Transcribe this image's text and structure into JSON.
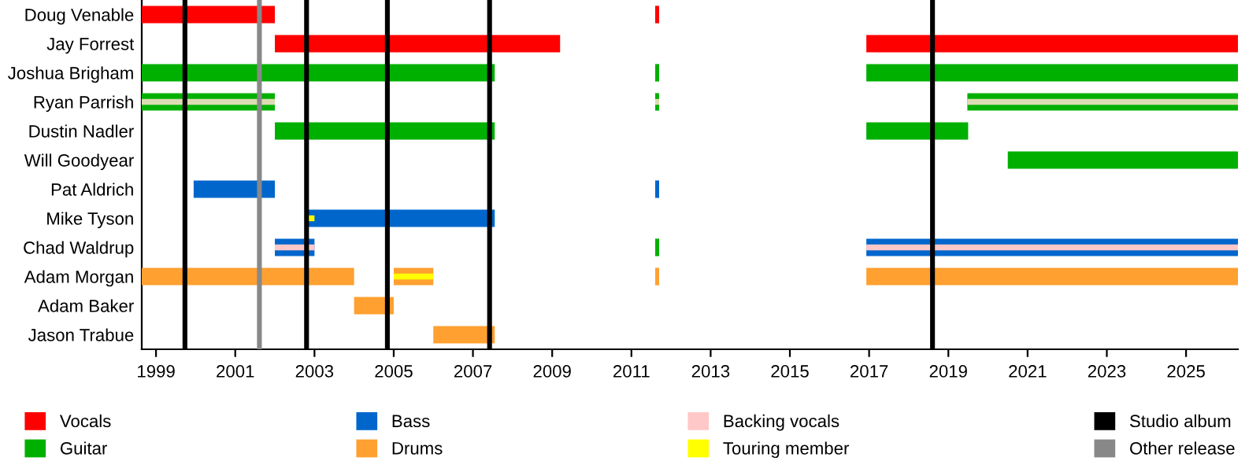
{
  "chart_data": {
    "type": "bar",
    "orientation": "horizontal",
    "categories": [
      "Doug Venable",
      "Jay Forrest",
      "Joshua Brigham",
      "Ryan Parrish",
      "Dustin Nadler",
      "Will Goodyear",
      "Pat Aldrich",
      "Mike Tyson",
      "Chad Waldrup",
      "Adam Morgan",
      "Adam Baker",
      "Jason Trabue"
    ],
    "series": [
      {
        "name": "Vocals",
        "color": "#ff0000",
        "base": [
          1998.64,
          2002.0,
          null,
          null,
          null,
          null,
          null,
          null,
          null,
          null,
          null,
          null
        ],
        "values": [
          3.36,
          7.2,
          null,
          null,
          null,
          null,
          null,
          null,
          null,
          null,
          null,
          null
        ]
      },
      {
        "color": "#ff0000",
        "base": [
          2011.6,
          2016.93,
          null,
          null,
          null,
          null,
          null,
          null,
          null,
          null,
          null,
          null
        ],
        "values": [
          0.1,
          9.38,
          null,
          null,
          null,
          null,
          null,
          null,
          null,
          null,
          null,
          null
        ]
      },
      {
        "name": "Guitar",
        "color": "#00b000",
        "base": [
          null,
          null,
          1998.64,
          1998.64,
          2002.0,
          null,
          null,
          null,
          null,
          null,
          null,
          null
        ],
        "values": [
          null,
          null,
          8.91,
          3.36,
          5.55,
          null,
          null,
          null,
          null,
          null,
          null,
          null
        ]
      },
      {
        "color": "#00b000",
        "base": [
          null,
          null,
          2011.6,
          2011.6,
          2016.93,
          2020.5,
          null,
          null,
          2011.6,
          null,
          null,
          null
        ],
        "values": [
          null,
          null,
          0.1,
          0.1,
          2.57,
          5.81,
          null,
          null,
          0.1,
          null,
          null,
          null
        ]
      },
      {
        "color": "#00b000",
        "base": [
          null,
          null,
          2016.93,
          2019.48,
          null,
          null,
          null,
          null,
          null,
          null,
          null,
          null
        ],
        "values": [
          null,
          null,
          9.38,
          6.83,
          null,
          null,
          null,
          null,
          null,
          null,
          null,
          null
        ]
      },
      {
        "name": "Bass",
        "color": "#0066cc",
        "base": [
          null,
          null,
          null,
          null,
          null,
          null,
          1999.95,
          2002.78,
          2002.0,
          null,
          null,
          null
        ],
        "values": [
          null,
          null,
          null,
          null,
          null,
          null,
          2.05,
          4.77,
          1.0,
          null,
          null,
          null
        ]
      },
      {
        "color": "#0066cc",
        "base": [
          null,
          null,
          null,
          null,
          null,
          null,
          2011.6,
          null,
          2016.93,
          null,
          null,
          null
        ],
        "values": [
          null,
          null,
          null,
          null,
          null,
          null,
          0.1,
          null,
          9.38,
          null,
          null,
          null
        ]
      },
      {
        "name": "Drums",
        "color": "#ffa030",
        "base": [
          null,
          null,
          null,
          null,
          null,
          null,
          null,
          null,
          null,
          1998.64,
          2004.0,
          2006.0
        ],
        "values": [
          null,
          null,
          null,
          null,
          null,
          null,
          null,
          null,
          null,
          5.36,
          1.0,
          1.55
        ]
      },
      {
        "color": "#ffa030",
        "base": [
          null,
          null,
          null,
          null,
          null,
          null,
          null,
          null,
          null,
          2005.0,
          null,
          null
        ],
        "values": [
          null,
          null,
          null,
          null,
          null,
          null,
          null,
          null,
          null,
          1.0,
          null,
          null
        ]
      },
      {
        "color": "#ffa030",
        "base": [
          null,
          null,
          null,
          null,
          null,
          null,
          null,
          null,
          null,
          2011.6,
          null,
          null
        ],
        "values": [
          null,
          null,
          null,
          null,
          null,
          null,
          null,
          null,
          null,
          0.1,
          null,
          null
        ]
      },
      {
        "color": "#ffa030",
        "base": [
          null,
          null,
          null,
          null,
          null,
          null,
          null,
          null,
          null,
          2016.93,
          null,
          null
        ],
        "values": [
          null,
          null,
          null,
          null,
          null,
          null,
          null,
          null,
          null,
          9.38,
          null,
          null
        ]
      },
      {
        "name": "Backing vocals",
        "color": "#ffc8c8",
        "base": [
          null,
          null,
          null,
          null,
          null,
          null,
          null,
          null,
          2002.0,
          null,
          null,
          null
        ],
        "values": [
          null,
          null,
          null,
          null,
          null,
          null,
          null,
          null,
          1.0,
          null,
          null,
          null
        ]
      },
      {
        "color": "#ffc8c8",
        "base": [
          null,
          null,
          null,
          null,
          null,
          null,
          null,
          null,
          2016.93,
          null,
          null,
          null
        ],
        "values": [
          null,
          null,
          null,
          null,
          null,
          null,
          null,
          null,
          9.38,
          null,
          null,
          null
        ]
      },
      {
        "name": "Touring member",
        "color": "#ffff00",
        "base": [
          null,
          null,
          null,
          null,
          null,
          null,
          null,
          2002.78,
          null,
          2005.0,
          null,
          null
        ],
        "values": [
          null,
          null,
          null,
          null,
          null,
          null,
          null,
          0.22,
          null,
          1.0,
          null,
          null
        ]
      },
      {
        "color": "#dcdcb4",
        "base": [
          null,
          null,
          null,
          1998.64,
          null,
          null,
          null,
          null,
          null,
          null,
          null,
          null
        ],
        "values": [
          null,
          null,
          null,
          3.36,
          null,
          null,
          null,
          null,
          null,
          null,
          null,
          null
        ]
      },
      {
        "color": "#dcdcb4",
        "base": [
          null,
          null,
          null,
          2011.6,
          null,
          null,
          null,
          null,
          null,
          null,
          null,
          null
        ],
        "values": [
          null,
          null,
          null,
          0.1,
          null,
          null,
          null,
          null,
          null,
          null,
          null,
          null
        ]
      },
      {
        "color": "#dcdcb4",
        "base": [
          null,
          null,
          null,
          2019.48,
          null,
          null,
          null,
          null,
          null,
          null,
          null,
          null
        ],
        "values": [
          null,
          null,
          null,
          6.83,
          null,
          null,
          null,
          null,
          null,
          null,
          null,
          null
        ]
      }
    ],
    "ref_lines": [
      {
        "axis": "x",
        "value": 1999.73,
        "label": "Studio album",
        "color": "#000000"
      },
      {
        "axis": "x",
        "value": 2001.61,
        "label": "Other release",
        "color": "#888888"
      },
      {
        "axis": "x",
        "value": 2002.8,
        "color": "#000000"
      },
      {
        "axis": "x",
        "value": 2004.84,
        "color": "#000000"
      },
      {
        "axis": "x",
        "value": 2007.42,
        "color": "#000000"
      },
      {
        "axis": "x",
        "value": 2018.6,
        "color": "#000000"
      }
    ],
    "xlim": [
      1998.64,
      2026.31
    ],
    "xticks": [
      1999,
      2001,
      2003,
      2005,
      2007,
      2009,
      2011,
      2013,
      2015,
      2017,
      2019,
      2021,
      2023,
      2025
    ],
    "legend": "bottom",
    "grid": false
  }
}
